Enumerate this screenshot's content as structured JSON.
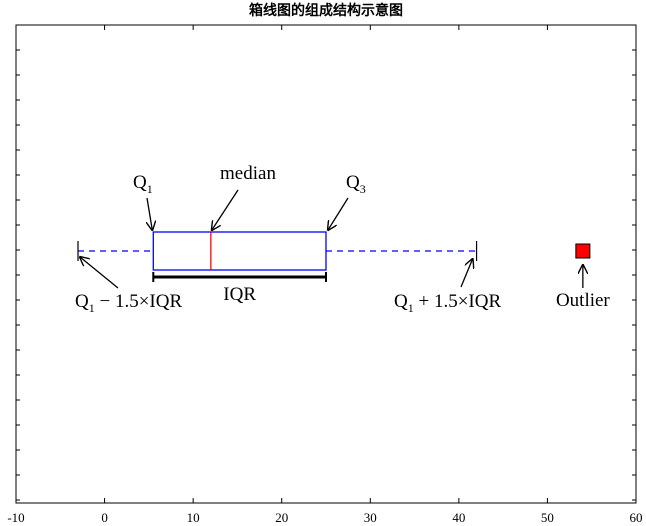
{
  "chart_data": {
    "type": "box",
    "title": "箱线图的组成结构示意图",
    "xlabel": "",
    "ylabel": "",
    "xlim": [
      -10,
      60
    ],
    "xticks": [
      -10,
      0,
      10,
      20,
      30,
      40,
      50,
      60
    ],
    "grid": false,
    "box": {
      "whisker_low": -3,
      "q1": 5.5,
      "median": 12,
      "q3": 25,
      "whisker_high": 42,
      "outliers": [
        54
      ]
    },
    "colors": {
      "box": "#0000ff",
      "median": "#ff0000",
      "outlier": "#ff0000",
      "iqr_bar": "#000000"
    },
    "annotations": {
      "q1": {
        "main": "Q",
        "sub": "1"
      },
      "median": "median",
      "q3": {
        "main": "Q",
        "sub": "3"
      },
      "iqr": "IQR",
      "low_whisker": {
        "pre": "Q",
        "sub": "1",
        "post": " − 1.5×IQR"
      },
      "high_whisker": {
        "pre": "Q",
        "sub": "1",
        "post": " + 1.5×IQR"
      },
      "outlier": "Outlier"
    }
  }
}
